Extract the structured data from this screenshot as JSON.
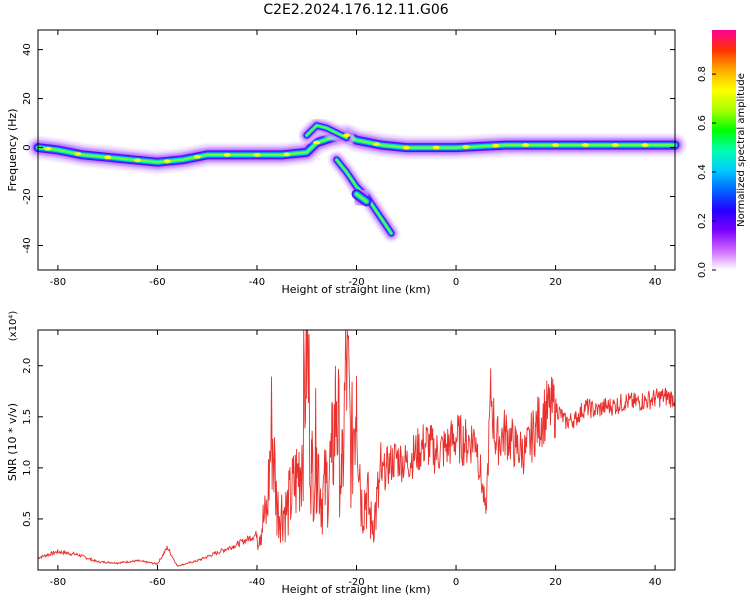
{
  "figure_title": "C2E2.2024.176.12.11.G06",
  "chart_data": [
    {
      "type": "heatmap",
      "title": "",
      "xlabel": "Height of straight line (km)",
      "ylabel": "Frequency (Hz)",
      "xlim": [
        -84,
        44
      ],
      "ylim": [
        -50,
        48
      ],
      "xticks": [
        -80,
        -60,
        -40,
        -20,
        0,
        20,
        40
      ],
      "yticks": [
        -40,
        -20,
        0,
        20,
        40
      ],
      "colorbar": {
        "label": "Normalized spectral amplitude",
        "range": [
          0,
          0.98
        ],
        "ticks": [
          "0.0",
          "0.2",
          "0.4",
          "0.6",
          "0.8"
        ],
        "colormap": [
          "#ffffff",
          "#cc66ff",
          "#7a00ff",
          "#2200ff",
          "#0066ff",
          "#00ccff",
          "#00ffaa",
          "#00ff00",
          "#aaff00",
          "#ffff00",
          "#ffaa00",
          "#ff3300",
          "#ff0099"
        ]
      },
      "features": [
        {
          "name": "main-ridge",
          "x": [
            -84,
            -80,
            -75,
            -70,
            -65,
            -60,
            -55,
            -50,
            -45,
            -40,
            -35,
            -30,
            -28,
            -25,
            -22,
            -20,
            -15,
            -10,
            -5,
            0,
            10,
            20,
            30,
            44
          ],
          "y": [
            0,
            -1,
            -3,
            -4,
            -5,
            -6,
            -5,
            -3,
            -3,
            -3,
            -3,
            -2,
            2,
            4,
            5,
            3,
            1,
            0,
            0,
            0,
            1,
            1,
            1,
            1
          ]
        },
        {
          "name": "branch-upper",
          "x": [
            -30,
            -28,
            -26,
            -24,
            -22
          ],
          "y": [
            5,
            9,
            8,
            6,
            4
          ]
        },
        {
          "name": "branch-lower",
          "x": [
            -24,
            -22,
            -20,
            -18,
            -16,
            -13
          ],
          "y": [
            -5,
            -10,
            -16,
            -20,
            -26,
            -35
          ]
        },
        {
          "name": "blob",
          "x": [
            -20,
            -18
          ],
          "y": [
            -19,
            -22
          ]
        }
      ]
    },
    {
      "type": "line",
      "title": "",
      "xlabel": "Height of straight line (km)",
      "ylabel": "SNR (10 * v/v)",
      "y_multiplier": "(x10⁴)",
      "xlim": [
        -84,
        44
      ],
      "ylim": [
        0,
        23500
      ],
      "xticks": [
        -80,
        -60,
        -40,
        -20,
        0,
        20,
        40
      ],
      "yticks": [
        5000,
        10000,
        15000,
        20000
      ],
      "ytick_labels": [
        "0.5",
        "1.0",
        "1.5",
        "2.0"
      ],
      "color": "#e8312d",
      "x": [
        -84,
        -80,
        -76,
        -72,
        -68,
        -64,
        -60,
        -58,
        -56,
        -52,
        -48,
        -44,
        -40,
        -38,
        -37,
        -36,
        -34,
        -32,
        -31,
        -30,
        -29,
        -28,
        -27,
        -26,
        -25,
        -24,
        -23,
        -22,
        -21,
        -20,
        -19,
        -18,
        -17,
        -16,
        -15,
        -14,
        -12,
        -10,
        -8,
        -6,
        -4,
        -2,
        0,
        2,
        4,
        6,
        7,
        8,
        10,
        12,
        14,
        16,
        18,
        20,
        22,
        24,
        26,
        28,
        30,
        32,
        34,
        36,
        38,
        40,
        42,
        44
      ],
      "y": [
        1200,
        1800,
        1500,
        800,
        700,
        900,
        600,
        2200,
        400,
        900,
        1700,
        2500,
        3500,
        5500,
        14200,
        6000,
        5800,
        9000,
        11500,
        23500,
        9500,
        12000,
        7000,
        8500,
        10500,
        16500,
        8000,
        20500,
        11000,
        19000,
        6500,
        7500,
        4500,
        6000,
        9000,
        10000,
        11000,
        10500,
        11500,
        12500,
        11500,
        12000,
        13000,
        12500,
        13000,
        5500,
        17400,
        12500,
        13500,
        12000,
        11500,
        14000,
        15500,
        16000,
        14500,
        14800,
        16000,
        15600,
        16000,
        16100,
        16500,
        16400,
        16600,
        16800,
        17000,
        16800
      ]
    }
  ]
}
